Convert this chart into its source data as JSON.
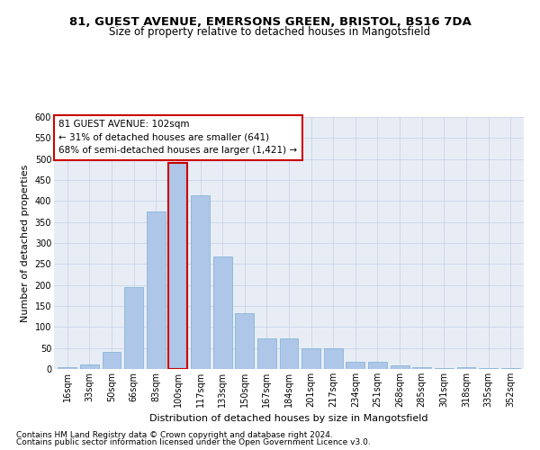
{
  "title_line1": "81, GUEST AVENUE, EMERSONS GREEN, BRISTOL, BS16 7DA",
  "title_line2": "Size of property relative to detached houses in Mangotsfield",
  "xlabel": "Distribution of detached houses by size in Mangotsfield",
  "ylabel": "Number of detached properties",
  "categories": [
    "16sqm",
    "33sqm",
    "50sqm",
    "66sqm",
    "83sqm",
    "100sqm",
    "117sqm",
    "133sqm",
    "150sqm",
    "167sqm",
    "184sqm",
    "201sqm",
    "217sqm",
    "234sqm",
    "251sqm",
    "268sqm",
    "285sqm",
    "301sqm",
    "318sqm",
    "335sqm",
    "352sqm"
  ],
  "values": [
    5,
    10,
    40,
    195,
    375,
    490,
    413,
    268,
    133,
    73,
    73,
    50,
    50,
    18,
    18,
    8,
    5,
    2,
    5,
    2,
    2
  ],
  "bar_color": "#aec6e8",
  "bar_edge_color": "#7aafd4",
  "highlight_bar_index": 5,
  "highlight_bar_edge_color": "#cc0000",
  "annotation_line1": "81 GUEST AVENUE: 102sqm",
  "annotation_line2": "← 31% of detached houses are smaller (641)",
  "annotation_line3": "68% of semi-detached houses are larger (1,421) →",
  "annotation_box_edge_color": "#cc0000",
  "ylim": [
    0,
    600
  ],
  "yticks": [
    0,
    50,
    100,
    150,
    200,
    250,
    300,
    350,
    400,
    450,
    500,
    550,
    600
  ],
  "grid_color": "#c8d4e8",
  "bg_color": "#e8edf5",
  "footer_line1": "Contains HM Land Registry data © Crown copyright and database right 2024.",
  "footer_line2": "Contains public sector information licensed under the Open Government Licence v3.0.",
  "title_fontsize": 9.5,
  "subtitle_fontsize": 8.5,
  "axis_label_fontsize": 8,
  "tick_fontsize": 7,
  "annotation_fontsize": 7.5,
  "footer_fontsize": 6.5
}
